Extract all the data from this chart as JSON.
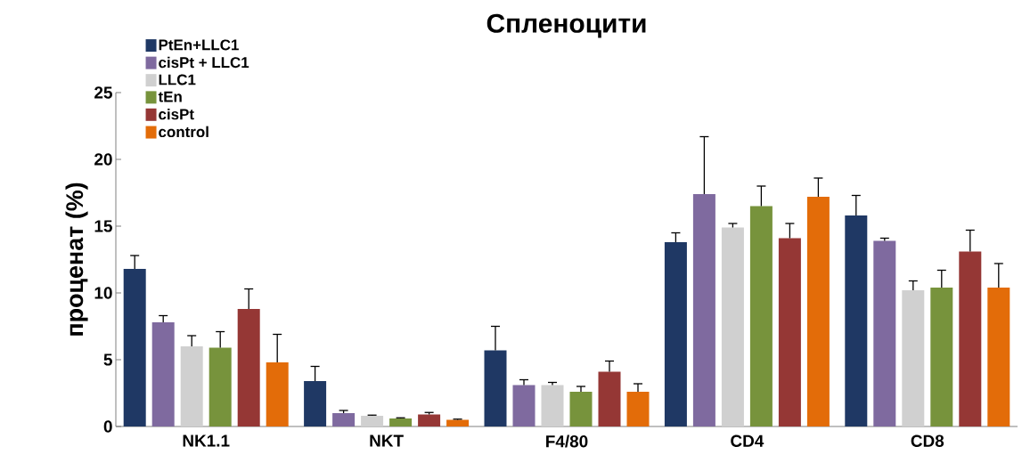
{
  "chart_data": {
    "type": "bar",
    "title": "Спленоцити",
    "ylabel": "проценат (%)",
    "categories": [
      "NK1.1",
      "NKT",
      "F4/80",
      "CD4",
      "CD8"
    ],
    "series": [
      {
        "name": "PtEn+LLC1",
        "color": "#1f3864",
        "values": [
          11.8,
          3.4,
          5.7,
          13.8,
          15.8
        ],
        "errors": [
          [
            11.8,
            12.8
          ],
          [
            3.4,
            4.5
          ],
          [
            5.7,
            7.5
          ],
          [
            13.8,
            14.5
          ],
          [
            15.8,
            17.3
          ]
        ]
      },
      {
        "name": "cisPt + LLC1",
        "color": "#7f6a9f",
        "values": [
          7.8,
          1.0,
          3.1,
          17.4,
          13.9
        ],
        "errors": [
          [
            7.8,
            8.3
          ],
          [
            1.0,
            1.2
          ],
          [
            3.1,
            3.5
          ],
          [
            17.4,
            21.7
          ],
          [
            13.9,
            14.1
          ]
        ]
      },
      {
        "name": "LLC1",
        "color": "#d0d0d0",
        "values": [
          6.0,
          0.8,
          3.1,
          14.9,
          10.2
        ],
        "errors": [
          [
            6.0,
            6.8
          ],
          [
            0.8,
            0.85
          ],
          [
            3.1,
            3.3
          ],
          [
            14.9,
            15.2
          ],
          [
            10.2,
            10.9
          ]
        ]
      },
      {
        "name": "tEn",
        "color": "#77933c",
        "values": [
          5.9,
          0.6,
          2.6,
          16.5,
          10.4
        ],
        "errors": [
          [
            5.9,
            7.1
          ],
          [
            0.6,
            0.65
          ],
          [
            2.6,
            3.0
          ],
          [
            16.5,
            18.0
          ],
          [
            10.4,
            11.7
          ]
        ]
      },
      {
        "name": "cisPt",
        "color": "#953735",
        "values": [
          8.8,
          0.9,
          4.1,
          14.1,
          13.1
        ],
        "errors": [
          [
            8.8,
            10.3
          ],
          [
            0.9,
            1.05
          ],
          [
            4.1,
            4.9
          ],
          [
            14.1,
            15.2
          ],
          [
            13.1,
            14.7
          ]
        ]
      },
      {
        "name": "control",
        "color": "#e36c09",
        "values": [
          4.8,
          0.5,
          2.6,
          17.2,
          10.4
        ],
        "errors": [
          [
            4.8,
            6.9
          ],
          [
            0.5,
            0.55
          ],
          [
            2.6,
            3.2
          ],
          [
            17.2,
            18.6
          ],
          [
            10.4,
            12.2
          ]
        ]
      }
    ],
    "ylim": [
      0,
      25
    ],
    "yticks": [
      0,
      5,
      10,
      15,
      20,
      25
    ],
    "legend": "top left"
  }
}
